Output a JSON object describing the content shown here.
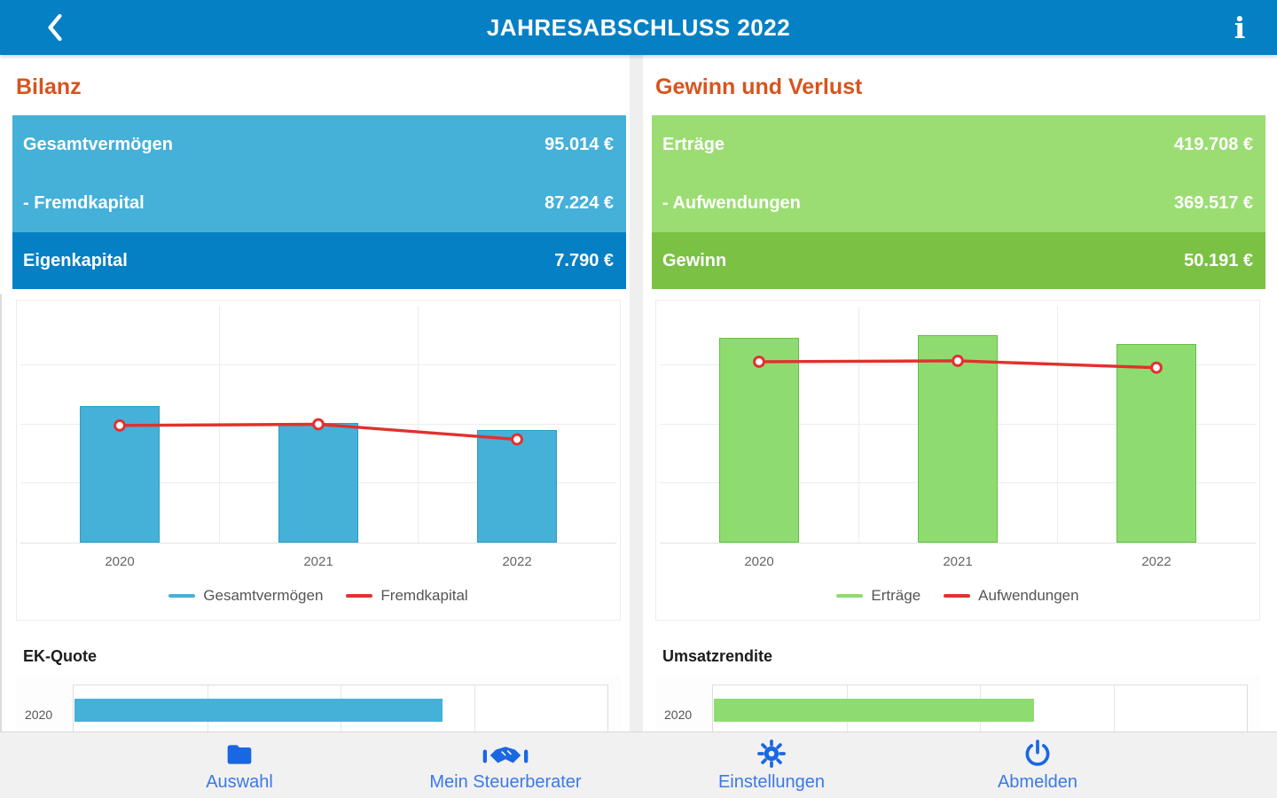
{
  "header": {
    "title": "JAHRESABSCHLUSS 2022"
  },
  "left": {
    "title": "Bilanz",
    "rows": [
      {
        "label": "Gesamtvermögen",
        "value": "95.014 €"
      },
      {
        "label": "- Fremdkapital",
        "value": "87.224 €"
      },
      {
        "label": "Eigenkapital",
        "value": "7.790 €"
      }
    ],
    "sub_title": "EK-Quote"
  },
  "right": {
    "title": "Gewinn und Verlust",
    "rows": [
      {
        "label": "Erträge",
        "value": "419.708 €"
      },
      {
        "label": "- Aufwendungen",
        "value": "369.517 €"
      },
      {
        "label": "Gewinn",
        "value": "50.191 €"
      }
    ],
    "sub_title": "Umsatzrendite"
  },
  "nav": {
    "items": [
      {
        "icon": "folder-icon",
        "label": "Auswahl"
      },
      {
        "icon": "handshake-icon",
        "label": "Mein Steuerberater"
      },
      {
        "icon": "gear-icon",
        "label": "Einstellungen"
      },
      {
        "icon": "power-icon",
        "label": "Abmelden"
      }
    ]
  },
  "colors": {
    "header_blue": "#0580c4",
    "row_light_blue": "#45b0d8",
    "row_dark_blue": "#0580c4",
    "row_light_green": "#9bdd72",
    "row_dark_green": "#7ac144",
    "section_title_orange": "#d9531e",
    "line_red": "#e3302e",
    "bar_blue": "#45b0d8",
    "bar_green": "#8edc70",
    "nav_blue": "#1967e2",
    "nav_bg": "#f1f1f1"
  },
  "chart_data": [
    {
      "id": "bilanz-chart",
      "type": "bar",
      "categories": [
        "2020",
        "2021",
        "2022"
      ],
      "series": [
        {
          "name": "Gesamtvermögen",
          "type": "bar",
          "color": "#45b0d8",
          "border": "#2a9dc7",
          "values": [
            115000,
            101500,
            95014
          ]
        },
        {
          "name": "Fremdkapital",
          "type": "line",
          "color": "#e3302e",
          "values": [
            99000,
            100000,
            87224
          ]
        }
      ],
      "ylim": [
        0,
        200000
      ],
      "grid": true,
      "legend_position": "bottom",
      "note": "y-axis unlabeled; bar values for 2020/2021 estimated from gridlines, 2022 values shown in summary box"
    },
    {
      "id": "guv-chart",
      "type": "bar",
      "categories": [
        "2020",
        "2021",
        "2022"
      ],
      "series": [
        {
          "name": "Erträge",
          "type": "bar",
          "color": "#8edc70",
          "border": "#64bf45",
          "values": [
            433000,
            438000,
            419708
          ]
        },
        {
          "name": "Aufwendungen",
          "type": "line",
          "color": "#e3302e",
          "values": [
            382000,
            384000,
            369517
          ]
        }
      ],
      "ylim": [
        0,
        500000
      ],
      "grid": true,
      "legend_position": "bottom",
      "note": "y-axis unlabeled; 2020/2021 values estimated, 2022 values shown in summary box"
    },
    {
      "id": "ek-quote-chart",
      "type": "bar",
      "orientation": "horizontal",
      "title": "EK-Quote",
      "categories": [
        "2020"
      ],
      "series": [
        {
          "name": "EK-Quote",
          "color": "#45b0d8",
          "values": [
            69
          ]
        }
      ],
      "xlim": [
        0,
        100
      ],
      "note": "chart cut off by bottom navigation; visible bar spans ~69% of axis"
    },
    {
      "id": "umsatzrendite-chart",
      "type": "bar",
      "orientation": "horizontal",
      "title": "Umsatzrendite",
      "categories": [
        "2020"
      ],
      "series": [
        {
          "name": "Umsatzrendite",
          "color": "#8edc70",
          "values": [
            60
          ]
        }
      ],
      "xlim": [
        0,
        100
      ],
      "note": "chart cut off by bottom navigation; visible bar spans ~60% of axis"
    }
  ]
}
